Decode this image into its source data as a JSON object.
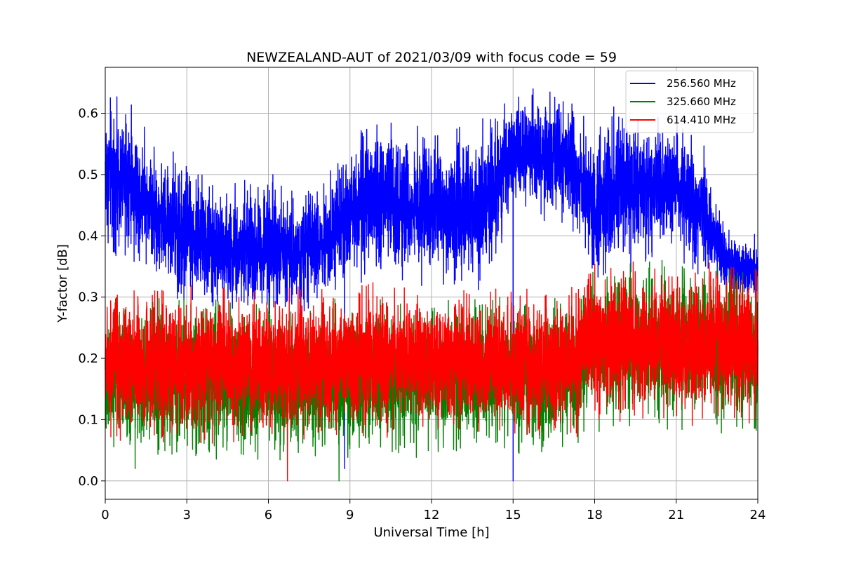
{
  "chart_data": {
    "type": "line",
    "title": "NEWZEALAND-AUT of 2021/03/09 with focus code = 59",
    "xlabel": "Universal Time [h]",
    "ylabel": "Y-factor [dB]",
    "xlim": [
      0,
      24
    ],
    "ylim": [
      -0.03,
      0.675
    ],
    "xticks": [
      0,
      3,
      6,
      9,
      12,
      15,
      18,
      21,
      24
    ],
    "yticks": [
      0.0,
      0.1,
      0.2,
      0.3,
      0.4,
      0.5,
      0.6
    ],
    "ytick_labels": [
      "0.0",
      "0.1",
      "0.2",
      "0.3",
      "0.4",
      "0.5",
      "0.6"
    ],
    "grid": true,
    "legend_position": "top-right",
    "series": [
      {
        "name": "256.560 MHz",
        "color": "#0000ff",
        "envelope": {
          "x": [
            0,
            1,
            2,
            3,
            4,
            5,
            6,
            7,
            8,
            9,
            10,
            11,
            12,
            13,
            14,
            15,
            16,
            17,
            18,
            19,
            20,
            21,
            22,
            23,
            24
          ],
          "low": [
            0.39,
            0.38,
            0.34,
            0.3,
            0.28,
            0.28,
            0.28,
            0.28,
            0.3,
            0.34,
            0.33,
            0.33,
            0.34,
            0.33,
            0.33,
            0.44,
            0.44,
            0.42,
            0.34,
            0.35,
            0.38,
            0.38,
            0.35,
            0.3,
            0.3
          ],
          "high": [
            0.62,
            0.6,
            0.52,
            0.52,
            0.47,
            0.47,
            0.49,
            0.47,
            0.47,
            0.55,
            0.58,
            0.57,
            0.55,
            0.56,
            0.58,
            0.63,
            0.63,
            0.62,
            0.56,
            0.61,
            0.58,
            0.58,
            0.53,
            0.4,
            0.38
          ]
        },
        "extremes": [
          {
            "x": 15.0,
            "y": 0.0
          },
          {
            "x": 8.8,
            "y": 0.02
          }
        ]
      },
      {
        "name": "325.660 MHz",
        "color": "#008000",
        "envelope": {
          "x": [
            0,
            2,
            4,
            6,
            8,
            10,
            12,
            14,
            16,
            17.4,
            17.6,
            20,
            22,
            24
          ],
          "low": [
            0.06,
            0.05,
            0.05,
            0.05,
            0.05,
            0.06,
            0.06,
            0.06,
            0.06,
            0.06,
            0.1,
            0.1,
            0.1,
            0.09
          ],
          "high": [
            0.28,
            0.28,
            0.28,
            0.28,
            0.28,
            0.28,
            0.28,
            0.28,
            0.28,
            0.29,
            0.33,
            0.34,
            0.34,
            0.33
          ]
        },
        "extremes": [
          {
            "x": 8.6,
            "y": 0.0
          },
          {
            "x": 1.1,
            "y": 0.02
          }
        ]
      },
      {
        "name": "614.410 MHz",
        "color": "#ff0000",
        "envelope": {
          "x": [
            0,
            2,
            4,
            6,
            8,
            10,
            12,
            14,
            16,
            17.4,
            17.6,
            20,
            22,
            24
          ],
          "low": [
            0.08,
            0.08,
            0.08,
            0.08,
            0.08,
            0.09,
            0.09,
            0.09,
            0.08,
            0.08,
            0.11,
            0.11,
            0.11,
            0.1
          ],
          "high": [
            0.3,
            0.3,
            0.3,
            0.3,
            0.3,
            0.31,
            0.31,
            0.3,
            0.3,
            0.3,
            0.34,
            0.34,
            0.34,
            0.34
          ]
        },
        "extremes": [
          {
            "x": 6.7,
            "y": 0.0
          }
        ]
      }
    ]
  }
}
